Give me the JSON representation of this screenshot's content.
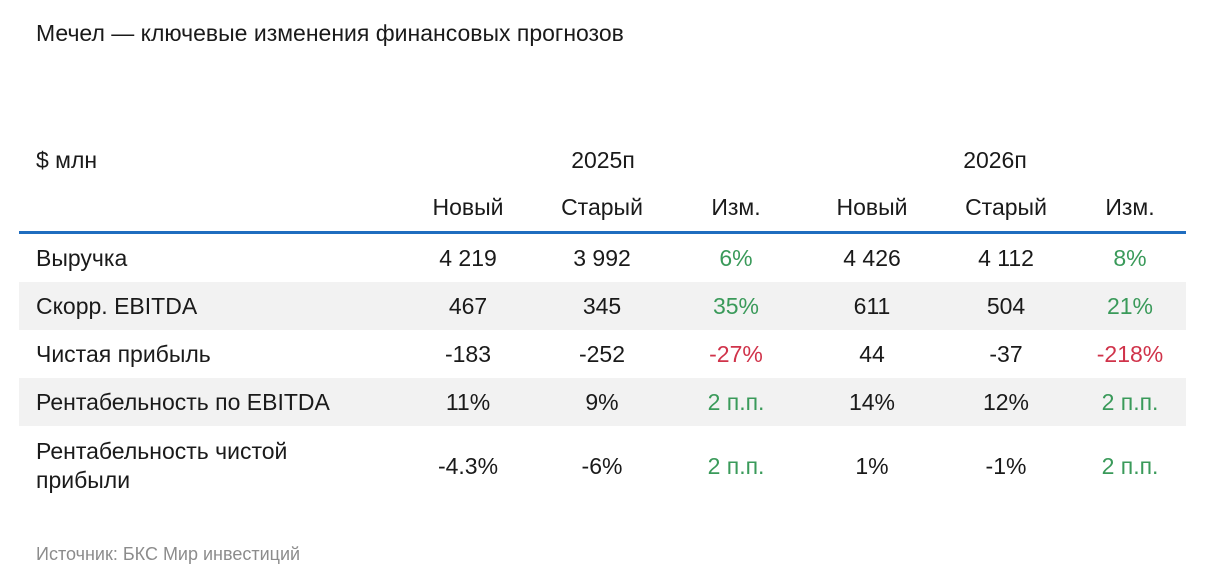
{
  "title": "Мечел — ключевые изменения финансовых прогнозов",
  "table": {
    "unit": "$ млн",
    "groups": [
      "2025п",
      "2026п"
    ],
    "columns": [
      "Новый",
      "Старый",
      "Изм.",
      "Новый",
      "Старый",
      "Изм."
    ],
    "rows": [
      {
        "label": "Выручка",
        "values": [
          "4 219",
          "3 992",
          "6%",
          "4 426",
          "4 112",
          "8%"
        ]
      },
      {
        "label": "Скорр. EBITDA",
        "values": [
          "467",
          "345",
          "35%",
          "611",
          "504",
          "21%"
        ]
      },
      {
        "label": "Чистая прибыль",
        "values": [
          "-183",
          "-252",
          "-27%",
          "44",
          "-37",
          "-218%"
        ]
      },
      {
        "label": "Рентабельность по EBITDA",
        "values": [
          "11%",
          "9%",
          "2 п.п.",
          "14%",
          "12%",
          "2 п.п."
        ]
      },
      {
        "label": "Рентабельность чистой прибыли",
        "values": [
          "-4.3%",
          "-6%",
          "2 п.п.",
          "1%",
          "-1%",
          "2 п.п."
        ]
      }
    ]
  },
  "colors": {
    "accent_line": "#1f6dbf",
    "positive": "#3a9a5a",
    "negative": "#d0334a",
    "row_shade": "#f2f2f2"
  },
  "source": "Источник: БКС Мир инвестиций"
}
